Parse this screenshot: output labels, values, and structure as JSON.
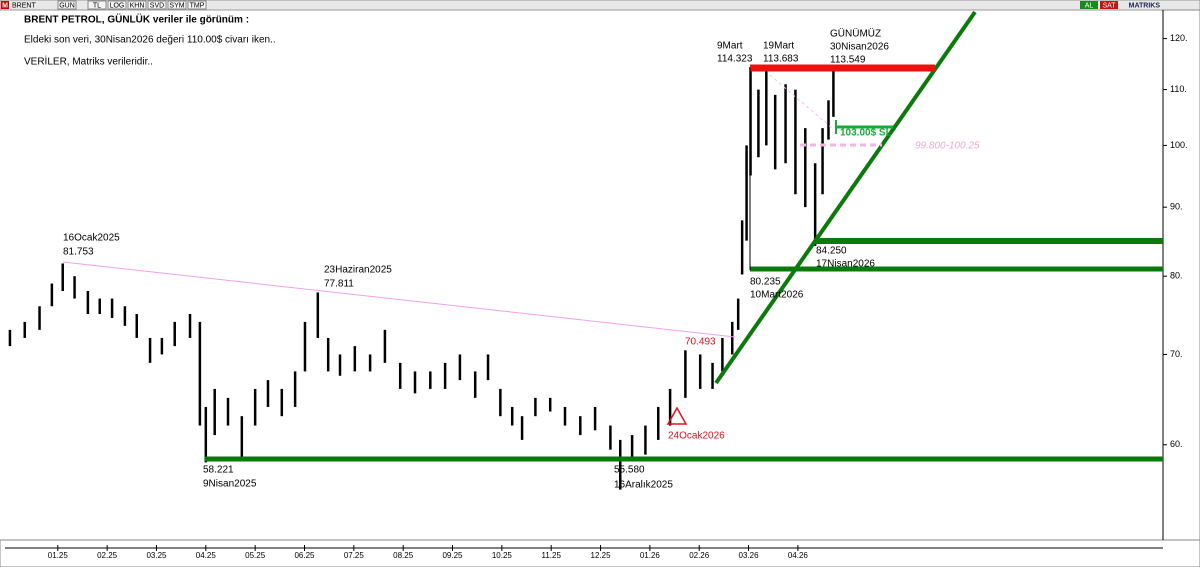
{
  "toolbar": {
    "logo": "M",
    "symbol": "BRENT",
    "buttons": [
      "GUN",
      "TL",
      "LOG",
      "KHN",
      "SVD",
      "SYM",
      "TMP"
    ],
    "actions": [
      "AL",
      "SAT"
    ],
    "brand": "MATRIKS"
  },
  "chart_data": {
    "type": "ohlc",
    "title": "BRENT PETROL, GÜNLÜK veriler ile görünüm :",
    "notes": [
      "Eldeki son veri, 30Nisan2026 değeri 110.00$ civarı iken..",
      "VERİLER, Matriks verileridir.."
    ],
    "color": "#000000",
    "log_scale": true,
    "x": [
      -0.97,
      -0.67,
      -0.37,
      -0.12,
      0.1,
      0.34,
      0.61,
      0.85,
      1.1,
      1.36,
      1.6,
      1.87,
      2.11,
      2.37,
      2.68,
      2.88,
      3.0,
      3.18,
      3.45,
      3.73,
      4.0,
      4.26,
      4.54,
      4.81,
      5.01,
      5.27,
      5.48,
      5.72,
      6.02,
      6.33,
      6.63,
      6.94,
      7.24,
      7.55,
      7.85,
      8.15,
      8.46,
      8.72,
      8.97,
      9.21,
      9.41,
      9.68,
      9.98,
      10.28,
      10.59,
      10.89,
      11.2,
      11.4,
      11.64,
      11.91,
      12.17,
      12.41,
      12.72,
      13.02,
      13.27,
      13.47,
      13.67,
      13.79,
      13.87,
      13.96,
      14.04,
      14.2,
      14.36,
      14.54,
      14.75,
      14.95,
      15.15,
      15.35,
      15.5,
      15.62,
      15.72
    ],
    "high": [
      73,
      74,
      76,
      79,
      81.753,
      80,
      78,
      77,
      77,
      76,
      75,
      72,
      72,
      74,
      75,
      74,
      64,
      66,
      65,
      63,
      66,
      67,
      66,
      68,
      74,
      77.811,
      72,
      70,
      71,
      70,
      73,
      69,
      68,
      68,
      69,
      70,
      68,
      70,
      66,
      64,
      63,
      65,
      65,
      64,
      63,
      64,
      62,
      60.5,
      61,
      62,
      64,
      66,
      70.493,
      70,
      69,
      72,
      74,
      77,
      88,
      100,
      114.323,
      110,
      113.683,
      109,
      111,
      110,
      103,
      97,
      103,
      108,
      113.549
    ],
    "low": [
      71,
      72,
      73,
      76,
      78,
      77,
      75,
      75,
      74.5,
      73.5,
      72,
      69,
      70,
      71,
      72,
      62,
      58.221,
      61,
      62,
      58.8,
      62,
      64,
      63,
      64,
      68,
      72,
      68,
      67.5,
      68,
      68,
      69,
      66,
      65.5,
      66,
      66,
      67,
      65,
      67,
      63,
      62,
      60.5,
      63,
      63.5,
      62,
      61,
      61.5,
      59.5,
      55.58,
      58.5,
      59,
      60.5,
      62,
      65,
      66,
      66,
      68,
      70,
      73,
      80.235,
      85,
      95,
      98,
      100,
      96,
      97,
      92,
      90,
      84.25,
      92,
      101,
      105
    ],
    "ylim": [
      51,
      126
    ],
    "yticks": [
      {
        "value": 60,
        "label": "60."
      },
      {
        "value": 70,
        "label": "70."
      },
      {
        "value": 80,
        "label": "80."
      },
      {
        "value": 90,
        "label": "90."
      },
      {
        "value": 100,
        "label": "100."
      },
      {
        "value": 110,
        "label": "110."
      },
      {
        "value": 120,
        "label": "120."
      }
    ],
    "xlim": [
      -1.07,
      22.4
    ],
    "xticks": [
      {
        "value": 0,
        "label": "01.25"
      },
      {
        "value": 1,
        "label": "02.25"
      },
      {
        "value": 2,
        "label": "03.25"
      },
      {
        "value": 3,
        "label": "04.25"
      },
      {
        "value": 4,
        "label": "05.25"
      },
      {
        "value": 5,
        "label": "06.25"
      },
      {
        "value": 6,
        "label": "07.25"
      },
      {
        "value": 7,
        "label": "08.25"
      },
      {
        "value": 8,
        "label": "09.25"
      },
      {
        "value": 9,
        "label": "10.25"
      },
      {
        "value": 10,
        "label": "11.25"
      },
      {
        "value": 11,
        "label": "12.25"
      },
      {
        "value": 12,
        "label": "01.26"
      },
      {
        "value": 13,
        "label": "02.26"
      },
      {
        "value": 14,
        "label": "03.26"
      },
      {
        "value": 15,
        "label": "04.26"
      }
    ],
    "annotations": [
      "16Ocak2025",
      "81.753",
      "23Haziran2025",
      "77.811",
      "58.221",
      "9Nisan2025",
      "55.580",
      "16Aralık2025",
      "70.493",
      "24Ocak2026",
      "9Mart",
      "114.323",
      "19Mart",
      "113.683",
      "GÜNÜMÜZ",
      "30Nisan2026",
      "113.549",
      "103.00$ SL",
      "99.800-100.25",
      "84.250",
      "17Nisan2026",
      "80.235",
      "10Mart2026"
    ]
  }
}
